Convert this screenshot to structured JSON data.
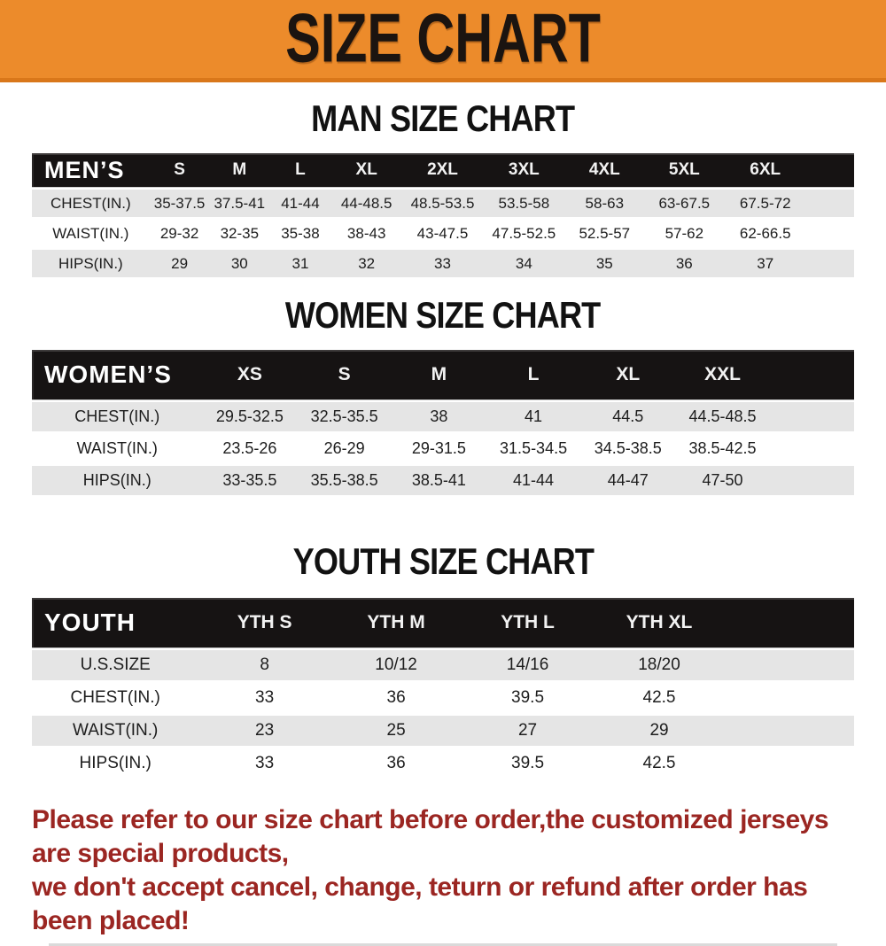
{
  "banner": {
    "title": "SIZE CHART",
    "bg_color": "#ec8b2b"
  },
  "sections": [
    {
      "id": "men",
      "title": "MAN SIZE CHART",
      "header_label": "MEN’S",
      "columns": [
        "S",
        "M",
        "L",
        "XL",
        "2XL",
        "3XL",
        "4XL",
        "5XL",
        "6XL"
      ],
      "rows": [
        {
          "label": "CHEST(IN.)",
          "values": [
            "35-37.5",
            "37.5-41",
            "41-44",
            "44-48.5",
            "48.5-53.5",
            "53.5-58",
            "58-63",
            "63-67.5",
            "67.5-72"
          ]
        },
        {
          "label": "WAIST(IN.)",
          "values": [
            "29-32",
            "32-35",
            "35-38",
            "38-43",
            "43-47.5",
            "47.5-52.5",
            "52.5-57",
            "57-62",
            "62-66.5"
          ]
        },
        {
          "label": "HIPS(IN.)",
          "values": [
            "29",
            "30",
            "31",
            "32",
            "33",
            "34",
            "35",
            "36",
            "37"
          ]
        }
      ]
    },
    {
      "id": "women",
      "title": "WOMEN SIZE CHART",
      "header_label": "WOMEN’S",
      "columns": [
        "XS",
        "S",
        "M",
        "L",
        "XL",
        "XXL"
      ],
      "rows": [
        {
          "label": "CHEST(IN.)",
          "values": [
            "29.5-32.5",
            "32.5-35.5",
            "38",
            "41",
            "44.5",
            "44.5-48.5"
          ]
        },
        {
          "label": "WAIST(IN.)",
          "values": [
            "23.5-26",
            "26-29",
            "29-31.5",
            "31.5-34.5",
            "34.5-38.5",
            "38.5-42.5"
          ]
        },
        {
          "label": "HIPS(IN.)",
          "values": [
            "33-35.5",
            "35.5-38.5",
            "38.5-41",
            "41-44",
            "44-47",
            "47-50"
          ]
        }
      ]
    },
    {
      "id": "youth",
      "title": "YOUTH SIZE CHART",
      "header_label": "YOUTH",
      "columns": [
        "YTH S",
        "YTH M",
        "YTH L",
        "YTH XL"
      ],
      "rows": [
        {
          "label": "U.S.SIZE",
          "values": [
            "8",
            "10/12",
            "14/16",
            "18/20"
          ]
        },
        {
          "label": "CHEST(IN.)",
          "values": [
            "33",
            "36",
            "39.5",
            "42.5"
          ]
        },
        {
          "label": "WAIST(IN.)",
          "values": [
            "23",
            "25",
            "27",
            "29"
          ]
        },
        {
          "label": "HIPS(IN.)",
          "values": [
            "33",
            "36",
            "39.5",
            "42.5"
          ]
        }
      ]
    }
  ],
  "footer": {
    "line1": "Please refer to our size chart before order,the customized jerseys are special products,",
    "line2": "we don't accept cancel, change, teturn or refund after order has been placed!",
    "text_color": "#9b2622"
  },
  "colors": {
    "header_bar": "#161313",
    "row_gray": "#e5e5e5",
    "row_white": "#ffffff"
  }
}
